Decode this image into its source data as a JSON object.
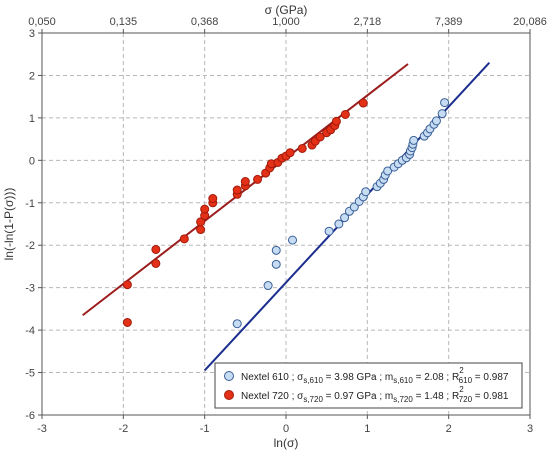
{
  "chart_data": {
    "type": "scatter",
    "title": "",
    "xlabel": "ln(σ)",
    "ylabel": "ln(-ln(1-P(σ)))",
    "top_xlabel": "σ (GPa)",
    "xlim": [
      -3,
      3
    ],
    "ylim": [
      -6,
      3
    ],
    "grid": true,
    "legend_position": "bottom-right",
    "x_ticks": [
      -3,
      -2,
      -1,
      0,
      1,
      2,
      3
    ],
    "x_tick_labels": [
      "-3",
      "-2",
      "-1",
      "0",
      "1",
      "2",
      "3"
    ],
    "y_ticks": [
      -6,
      -5,
      -4,
      -3,
      -2,
      -1,
      0,
      1,
      2,
      3
    ],
    "y_tick_labels": [
      "-6",
      "-5",
      "-4",
      "-3",
      "-2",
      "-1",
      "0",
      "1",
      "2",
      "3"
    ],
    "top_ticks": [
      -3,
      -2,
      -1,
      0,
      1,
      2,
      3
    ],
    "top_tick_labels": [
      "0,050",
      "0,135",
      "0,368",
      "1,000",
      "2,718",
      "7,389",
      "20,086"
    ],
    "series": [
      {
        "name": "Nextel 610",
        "legend_label_parts": [
          "Nextel 610 ; σ",
          "s,610",
          " = 3.98 GPa ; m",
          "s,610",
          " = 2.08 ; R",
          "2",
          "610",
          " = 0.987"
        ],
        "marker_fill": "#c6dcf2",
        "marker_stroke": "#3a5f96",
        "fit_color": "#1b2e8f",
        "fit_line": [
          [
            -1.0,
            -4.95
          ],
          [
            2.5,
            2.3
          ]
        ],
        "points": [
          [
            -0.6,
            -3.85
          ],
          [
            -0.22,
            -2.95
          ],
          [
            -0.12,
            -2.12
          ],
          [
            -0.12,
            -2.45
          ],
          [
            0.08,
            -1.88
          ],
          [
            0.53,
            -1.67
          ],
          [
            0.65,
            -1.5
          ],
          [
            0.72,
            -1.35
          ],
          [
            0.78,
            -1.2
          ],
          [
            0.84,
            -1.1
          ],
          [
            0.9,
            -0.97
          ],
          [
            0.95,
            -0.86
          ],
          [
            0.98,
            -0.74
          ],
          [
            1.12,
            -0.62
          ],
          [
            1.16,
            -0.54
          ],
          [
            1.2,
            -0.45
          ],
          [
            1.22,
            -0.35
          ],
          [
            1.25,
            -0.25
          ],
          [
            1.33,
            -0.16
          ],
          [
            1.38,
            -0.08
          ],
          [
            1.43,
            0.0
          ],
          [
            1.48,
            0.06
          ],
          [
            1.52,
            0.14
          ],
          [
            1.53,
            0.22
          ],
          [
            1.55,
            0.3
          ],
          [
            1.56,
            0.38
          ],
          [
            1.57,
            0.47
          ],
          [
            1.7,
            0.57
          ],
          [
            1.74,
            0.65
          ],
          [
            1.77,
            0.74
          ],
          [
            1.82,
            0.85
          ],
          [
            1.85,
            0.93
          ],
          [
            1.92,
            1.1
          ],
          [
            1.95,
            1.36
          ]
        ]
      },
      {
        "name": "Nextel 720",
        "legend_label_parts": [
          "Nextel 720 ; σ",
          "s,720",
          " = 0.97 GPa ; m",
          "s,720",
          " = 1.48 ; R",
          "2",
          "720",
          " = 0.981"
        ],
        "marker_fill": "#e53018",
        "marker_stroke": "#a01a0a",
        "fit_color": "#9b1d1d",
        "fit_line": [
          [
            -2.5,
            -3.65
          ],
          [
            1.5,
            2.27
          ]
        ],
        "points": [
          [
            -1.95,
            -3.82
          ],
          [
            -1.95,
            -2.93
          ],
          [
            -1.6,
            -2.43
          ],
          [
            -1.6,
            -2.1
          ],
          [
            -1.25,
            -1.85
          ],
          [
            -1.05,
            -1.63
          ],
          [
            -1.05,
            -1.45
          ],
          [
            -1.0,
            -1.3
          ],
          [
            -1.0,
            -1.15
          ],
          [
            -0.9,
            -1.0
          ],
          [
            -0.9,
            -0.9
          ],
          [
            -0.6,
            -0.8
          ],
          [
            -0.6,
            -0.7
          ],
          [
            -0.5,
            -0.6
          ],
          [
            -0.5,
            -0.5
          ],
          [
            -0.35,
            -0.45
          ],
          [
            -0.25,
            -0.3
          ],
          [
            -0.2,
            -0.18
          ],
          [
            -0.18,
            -0.08
          ],
          [
            -0.1,
            -0.05
          ],
          [
            -0.05,
            0.05
          ],
          [
            0.0,
            0.1
          ],
          [
            0.05,
            0.18
          ],
          [
            0.2,
            0.28
          ],
          [
            0.32,
            0.36
          ],
          [
            0.36,
            0.45
          ],
          [
            0.42,
            0.55
          ],
          [
            0.5,
            0.65
          ],
          [
            0.55,
            0.72
          ],
          [
            0.6,
            0.82
          ],
          [
            0.62,
            0.92
          ],
          [
            0.73,
            1.08
          ],
          [
            0.95,
            1.35
          ]
        ]
      }
    ]
  }
}
